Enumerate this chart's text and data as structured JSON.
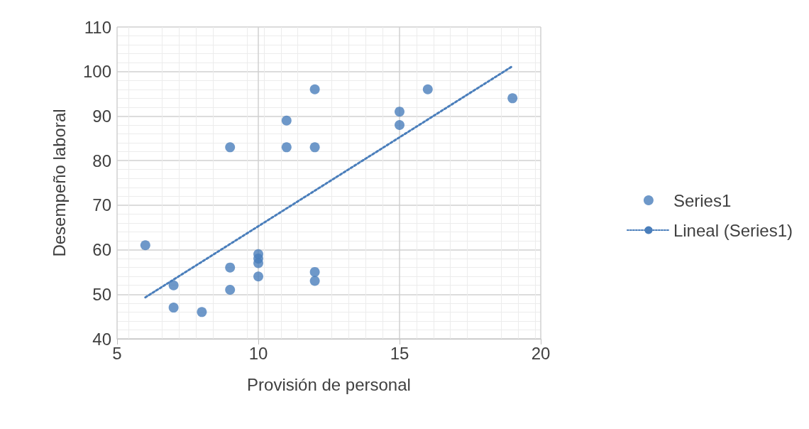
{
  "chart_data": {
    "type": "scatter",
    "xlabel": "Provisión de personal",
    "ylabel": "Desempeño laboral",
    "xlim": [
      5,
      20
    ],
    "xticks": [
      5,
      10,
      15,
      20
    ],
    "ylim": [
      40,
      110
    ],
    "yticks": [
      40,
      50,
      60,
      70,
      80,
      90,
      100,
      110
    ],
    "grid": true,
    "legend": "right",
    "marker": "circle",
    "series": [
      {
        "name": "Series1",
        "color": "#4a7ebb",
        "x": [
          6,
          7,
          7,
          8,
          9,
          9,
          9,
          10,
          10,
          10,
          10,
          11,
          11,
          12,
          12,
          12,
          12,
          15,
          15,
          16,
          19
        ],
        "values": [
          61,
          52,
          47,
          46,
          83,
          56,
          51,
          59,
          58,
          57,
          54,
          89,
          83,
          96,
          83,
          55,
          53,
          91,
          88,
          96,
          94
        ]
      },
      {
        "name": "Lineal (Series1)",
        "type": "line",
        "color": "#4a7ebb",
        "line_style": "dotted",
        "marker": "none",
        "x": [
          6,
          19
        ],
        "values": [
          49.3,
          101.2
        ]
      }
    ]
  }
}
